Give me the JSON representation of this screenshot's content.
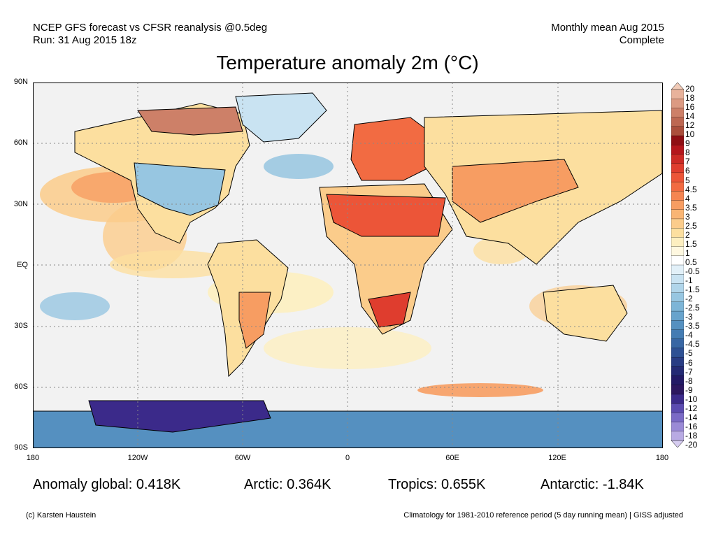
{
  "header": {
    "left_line1": "NCEP GFS forecast vs CFSR reanalysis @0.5deg",
    "left_line2": "Run: 31 Aug 2015 18z",
    "right_line1": "Monthly mean Aug 2015",
    "right_line2": "Complete"
  },
  "title": "Temperature anomaly 2m (°C)",
  "map": {
    "lat_labels": [
      "90N",
      "60N",
      "30N",
      "EQ",
      "30S",
      "60S",
      "90S"
    ],
    "lon_labels": [
      "180",
      "120W",
      "60W",
      "0",
      "60E",
      "120E",
      "180"
    ],
    "ocean_color": "#f2f2f2",
    "land_outline_color": "#000000",
    "grid_line_color": "#888888"
  },
  "colorbar": {
    "labels": [
      "20",
      "18",
      "16",
      "14",
      "12",
      "10",
      "9",
      "8",
      "7",
      "6",
      "5",
      "4.5",
      "4",
      "3.5",
      "3",
      "2.5",
      "2",
      "1.5",
      "1",
      "0.5",
      "-0.5",
      "-1",
      "-1.5",
      "-2",
      "-2.5",
      "-3",
      "-3.5",
      "-4",
      "-4.5",
      "-5",
      "-6",
      "-7",
      "-8",
      "-9",
      "-10",
      "-12",
      "-14",
      "-16",
      "-18",
      "-20"
    ],
    "colors": [
      "#f1cbb8",
      "#e8b29b",
      "#dc9a82",
      "#cd8068",
      "#bd6852",
      "#ab4f3c",
      "#8f0f14",
      "#b4161c",
      "#cc2a25",
      "#df3d2e",
      "#ec5538",
      "#f26b42",
      "#f58552",
      "#f79d62",
      "#f9b574",
      "#fbcc8b",
      "#fcdf9f",
      "#fdefc0",
      "#fff8e0",
      "#ffffff",
      "#e2f0f8",
      "#c9e3f2",
      "#b0d5ea",
      "#97c6e1",
      "#7db5d7",
      "#67a3cc",
      "#5590c0",
      "#447cb3",
      "#3867a4",
      "#2e5194",
      "#283c84",
      "#242a74",
      "#231a66",
      "#2c1760",
      "#3b2a8a",
      "#5b4bb0",
      "#7a6ac6",
      "#9a8ad6",
      "#b8aae3",
      "#d6ccf0"
    ]
  },
  "stats": {
    "global": "Anomaly global: 0.418K",
    "arctic": "Arctic: 0.364K",
    "tropics": "Tropics: 0.655K",
    "antarctic": "Antarctic: -1.84K"
  },
  "footer": {
    "credit": "(c) Karsten Haustein",
    "note": "Climatology for 1981-2010 reference period (5 day running mean) | GISS adjusted"
  }
}
